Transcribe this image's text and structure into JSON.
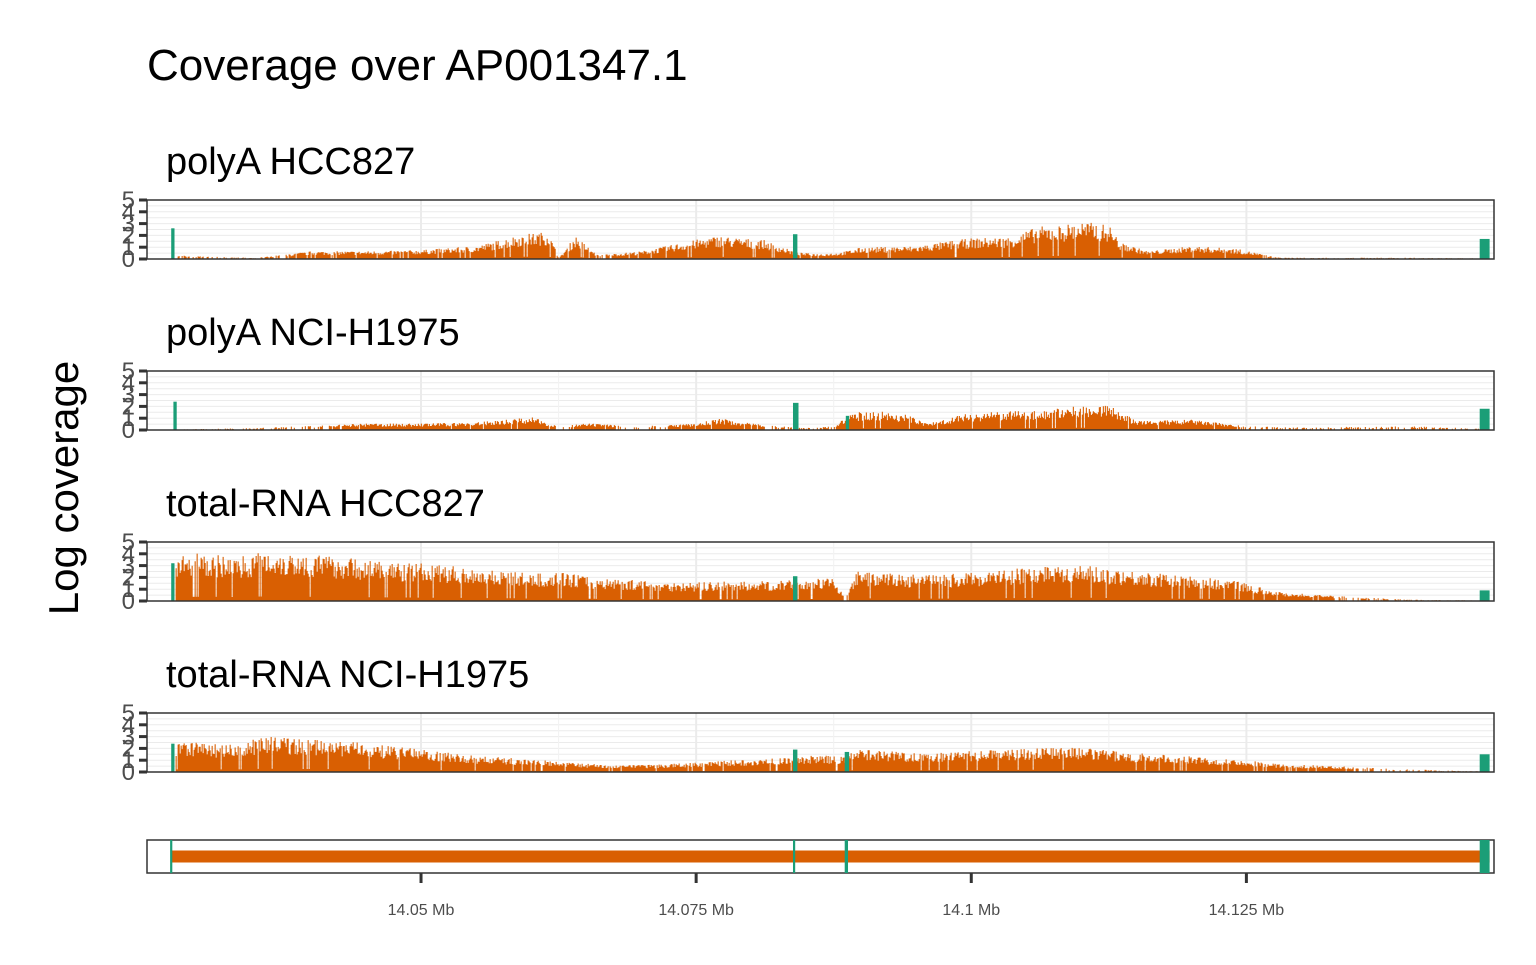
{
  "chart_data": {
    "type": "area",
    "title": "Coverage over AP001347.1",
    "ylabel": "Log coverage",
    "xlabel": "",
    "x_range_mb": [
      14.0251,
      14.1475
    ],
    "x_ticks": [
      {
        "value": 14.05,
        "label": "14.05 Mb"
      },
      {
        "value": 14.075,
        "label": "14.075 Mb"
      },
      {
        "value": 14.1,
        "label": "14.1 Mb"
      },
      {
        "value": 14.125,
        "label": "14.125 Mb"
      }
    ],
    "ylim": [
      0,
      5
    ],
    "y_ticks": [
      "0",
      "1",
      "2",
      "3",
      "4",
      "5"
    ],
    "grid": true,
    "colors": {
      "intron": "#d95f02",
      "exon": "#1b9e77"
    },
    "panels": [
      {
        "title": "polyA HCC827",
        "exon_peaks": [
          {
            "start": 14.0273,
            "end": 14.0276,
            "value": 2.6
          },
          {
            "start": 14.0838,
            "end": 14.0842,
            "value": 2.1
          },
          {
            "start": 14.1462,
            "end": 14.1471,
            "value": 1.7
          }
        ],
        "intron_profile": [
          [
            14.0277,
            0.3
          ],
          [
            14.03,
            0.2
          ],
          [
            14.035,
            0.1
          ],
          [
            14.04,
            0.6
          ],
          [
            14.045,
            0.6
          ],
          [
            14.05,
            0.7
          ],
          [
            14.055,
            1.0
          ],
          [
            14.059,
            1.9
          ],
          [
            14.0615,
            2.1
          ],
          [
            14.0625,
            0.1
          ],
          [
            14.064,
            1.8
          ],
          [
            14.066,
            0.3
          ],
          [
            14.07,
            0.6
          ],
          [
            14.075,
            1.5
          ],
          [
            14.077,
            1.8
          ],
          [
            14.079,
            1.6
          ],
          [
            14.081,
            1.5
          ],
          [
            14.0838,
            0.6
          ],
          [
            14.0842,
            0.5
          ],
          [
            14.086,
            0.4
          ],
          [
            14.088,
            0.5
          ],
          [
            14.09,
            0.9
          ],
          [
            14.095,
            1.0
          ],
          [
            14.098,
            1.4
          ],
          [
            14.1,
            1.6
          ],
          [
            14.1035,
            1.7
          ],
          [
            14.106,
            2.5
          ],
          [
            14.108,
            2.6
          ],
          [
            14.11,
            2.9
          ],
          [
            14.1125,
            2.6
          ],
          [
            14.1135,
            1.3
          ],
          [
            14.116,
            0.6
          ],
          [
            14.12,
            1.0
          ],
          [
            14.124,
            0.8
          ],
          [
            14.128,
            0.1
          ],
          [
            14.135,
            0.1
          ],
          [
            14.14,
            0.1
          ],
          [
            14.1461,
            0.05
          ]
        ]
      },
      {
        "title": "polyA NCI-H1975",
        "exon_peaks": [
          {
            "start": 14.0275,
            "end": 14.0278,
            "value": 2.4
          },
          {
            "start": 14.0838,
            "end": 14.0843,
            "value": 2.3
          },
          {
            "start": 14.0886,
            "end": 14.0889,
            "value": 1.2
          },
          {
            "start": 14.1462,
            "end": 14.1471,
            "value": 1.8
          }
        ],
        "intron_profile": [
          [
            14.0279,
            0.05
          ],
          [
            14.035,
            0.15
          ],
          [
            14.045,
            0.5
          ],
          [
            14.05,
            0.5
          ],
          [
            14.055,
            0.6
          ],
          [
            14.06,
            1.0
          ],
          [
            14.0625,
            0.3
          ],
          [
            14.065,
            0.5
          ],
          [
            14.07,
            0.3
          ],
          [
            14.075,
            0.5
          ],
          [
            14.077,
            0.9
          ],
          [
            14.08,
            0.5
          ],
          [
            14.0837,
            0.2
          ],
          [
            14.0855,
            0.15
          ],
          [
            14.0875,
            0.3
          ],
          [
            14.089,
            1.3
          ],
          [
            14.091,
            1.5
          ],
          [
            14.094,
            1.2
          ],
          [
            14.096,
            0.5
          ],
          [
            14.099,
            1.2
          ],
          [
            14.102,
            1.4
          ],
          [
            14.106,
            1.5
          ],
          [
            14.108,
            1.7
          ],
          [
            14.1115,
            2.0
          ],
          [
            14.1125,
            1.9
          ],
          [
            14.115,
            0.7
          ],
          [
            14.12,
            0.8
          ],
          [
            14.125,
            0.3
          ],
          [
            14.13,
            0.2
          ],
          [
            14.135,
            0.25
          ],
          [
            14.14,
            0.3
          ],
          [
            14.1461,
            0.1
          ]
        ]
      },
      {
        "title": "total-RNA HCC827",
        "exon_peaks": [
          {
            "start": 14.0273,
            "end": 14.0276,
            "value": 3.2
          },
          {
            "start": 14.0838,
            "end": 14.0842,
            "value": 2.1
          },
          {
            "start": 14.1462,
            "end": 14.1471,
            "value": 0.9
          }
        ],
        "intron_profile": [
          [
            14.0277,
            3.5
          ],
          [
            14.03,
            3.7
          ],
          [
            14.033,
            3.4
          ],
          [
            14.036,
            3.9
          ],
          [
            14.04,
            3.6
          ],
          [
            14.043,
            3.4
          ],
          [
            14.046,
            3.1
          ],
          [
            14.05,
            2.9
          ],
          [
            14.054,
            2.6
          ],
          [
            14.057,
            2.4
          ],
          [
            14.06,
            2.1
          ],
          [
            14.063,
            2.2
          ],
          [
            14.066,
            1.8
          ],
          [
            14.07,
            1.6
          ],
          [
            14.074,
            1.4
          ],
          [
            14.077,
            1.5
          ],
          [
            14.08,
            1.5
          ],
          [
            14.0837,
            1.6
          ],
          [
            14.086,
            1.7
          ],
          [
            14.0875,
            1.9
          ],
          [
            14.0885,
            0.05
          ],
          [
            14.0895,
            2.3
          ],
          [
            14.093,
            2.1
          ],
          [
            14.097,
            2.0
          ],
          [
            14.1,
            2.2
          ],
          [
            14.104,
            2.5
          ],
          [
            14.108,
            2.9
          ],
          [
            14.112,
            2.6
          ],
          [
            14.116,
            2.2
          ],
          [
            14.12,
            1.9
          ],
          [
            14.124,
            1.6
          ],
          [
            14.1265,
            1.0
          ],
          [
            14.128,
            0.7
          ],
          [
            14.131,
            0.5
          ],
          [
            14.135,
            0.3
          ],
          [
            14.14,
            0.1
          ],
          [
            14.1461,
            0.05
          ]
        ]
      },
      {
        "title": "total-RNA NCI-H1975",
        "exon_peaks": [
          {
            "start": 14.0273,
            "end": 14.0276,
            "value": 2.4
          },
          {
            "start": 14.0838,
            "end": 14.0842,
            "value": 1.9
          },
          {
            "start": 14.0885,
            "end": 14.0889,
            "value": 1.7
          },
          {
            "start": 14.1462,
            "end": 14.1471,
            "value": 1.5
          }
        ],
        "intron_profile": [
          [
            14.0277,
            2.2
          ],
          [
            14.03,
            2.3
          ],
          [
            14.033,
            2.1
          ],
          [
            14.036,
            2.8
          ],
          [
            14.04,
            2.5
          ],
          [
            14.044,
            2.3
          ],
          [
            14.047,
            2.0
          ],
          [
            14.05,
            1.8
          ],
          [
            14.054,
            1.3
          ],
          [
            14.058,
            1.1
          ],
          [
            14.061,
            0.9
          ],
          [
            14.064,
            0.7
          ],
          [
            14.068,
            0.5
          ],
          [
            14.072,
            0.6
          ],
          [
            14.076,
            0.8
          ],
          [
            14.08,
            1.0
          ],
          [
            14.0837,
            1.1
          ],
          [
            14.086,
            1.3
          ],
          [
            14.0883,
            1.2
          ],
          [
            14.09,
            1.8
          ],
          [
            14.093,
            1.6
          ],
          [
            14.097,
            1.5
          ],
          [
            14.1,
            1.6
          ],
          [
            14.104,
            1.8
          ],
          [
            14.108,
            2.0
          ],
          [
            14.112,
            1.7
          ],
          [
            14.116,
            1.4
          ],
          [
            14.12,
            1.2
          ],
          [
            14.124,
            1.0
          ],
          [
            14.128,
            0.6
          ],
          [
            14.132,
            0.5
          ],
          [
            14.137,
            0.3
          ],
          [
            14.142,
            0.15
          ],
          [
            14.1461,
            0.05
          ]
        ]
      }
    ],
    "gene_track": {
      "start": 14.0273,
      "end": 14.1471,
      "exons": [
        {
          "start": 14.0272,
          "end": 14.0274
        },
        {
          "start": 14.0838,
          "end": 14.084
        },
        {
          "start": 14.0885,
          "end": 14.0888
        },
        {
          "start": 14.1462,
          "end": 14.1471
        }
      ]
    }
  }
}
